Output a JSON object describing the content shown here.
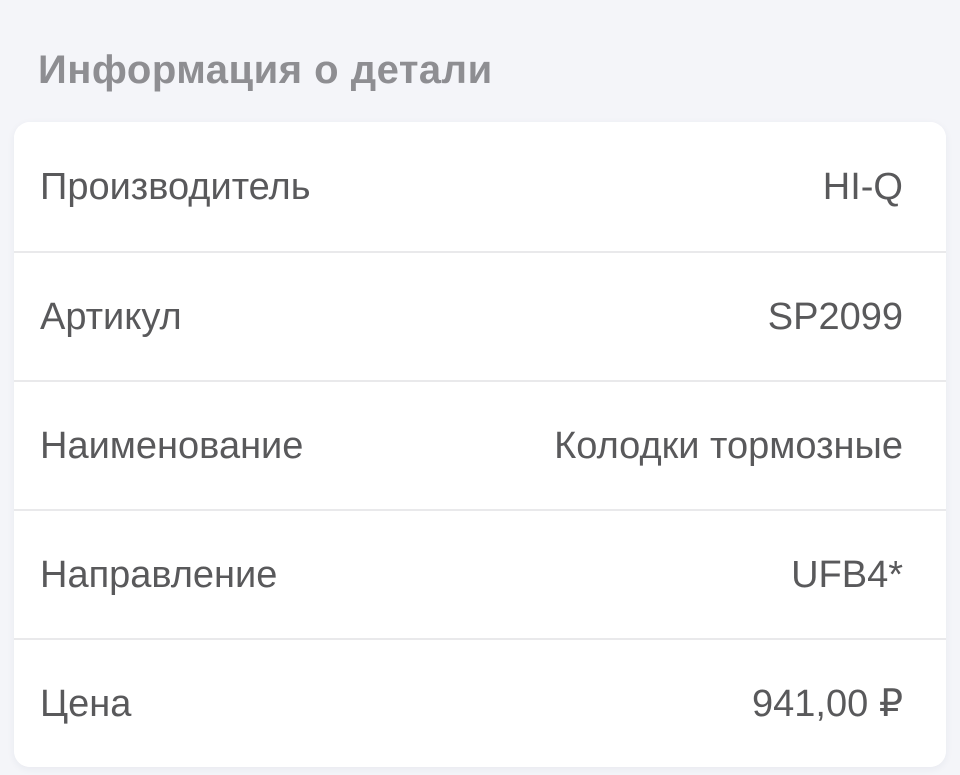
{
  "page": {
    "title": "Информация о детали"
  },
  "colors": {
    "background": "#f4f5f9",
    "card_background": "#ffffff",
    "title_text": "#8e8e92",
    "row_text": "#59595b",
    "divider": "#e9e9eb"
  },
  "details": {
    "rows": [
      {
        "label": "Производитель",
        "value": "HI-Q"
      },
      {
        "label": "Артикул",
        "value": "SP2099"
      },
      {
        "label": "Наименование",
        "value": "Колодки тормозные"
      },
      {
        "label": "Направление",
        "value": "UFB4*"
      },
      {
        "label": "Цена",
        "value": "941,00 ₽"
      }
    ]
  }
}
